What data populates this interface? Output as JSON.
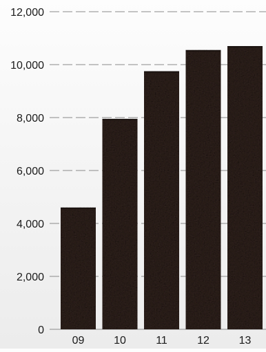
{
  "chart_data": {
    "type": "bar",
    "title": "",
    "xlabel": "",
    "ylabel": "",
    "categories": [
      "09",
      "10",
      "11",
      "12",
      "13"
    ],
    "values": [
      4600,
      7950,
      9750,
      10550,
      10700
    ],
    "ylim": [
      0,
      12000
    ],
    "y_ticks": [
      0,
      2000,
      4000,
      6000,
      8000,
      10000,
      12000
    ],
    "y_tick_labels": [
      "0",
      "2,000",
      "4,000",
      "6,000",
      "8,000",
      "10,000",
      "12,000"
    ],
    "grid": "horizontal dashed",
    "legend": "none",
    "colors": {
      "bar_base": "#2e211c",
      "bar_dark": "#1b1310",
      "bar_light": "#4a3a32",
      "grid": "#8a8a8a",
      "text": "#1a1a1a"
    }
  }
}
